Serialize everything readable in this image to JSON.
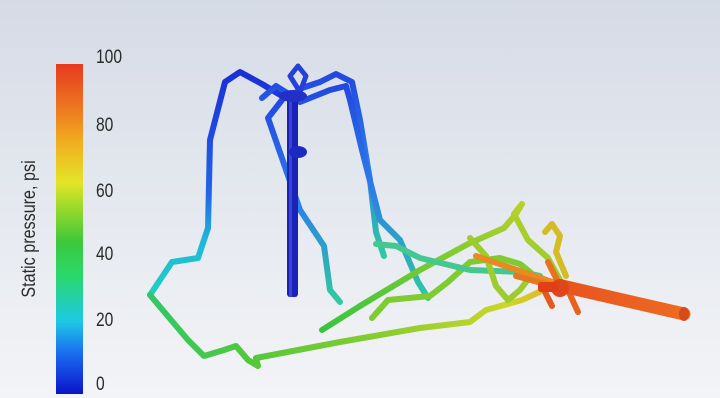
{
  "colorbar": {
    "label": "Static pressure, psi",
    "ticks": [
      "100",
      "80",
      "60",
      "40",
      "20",
      "0"
    ],
    "min": 0,
    "max": 100
  },
  "colors": {
    "low": "#0a14c8",
    "high": "#e63a1e",
    "background": "#e3e7ee"
  }
}
